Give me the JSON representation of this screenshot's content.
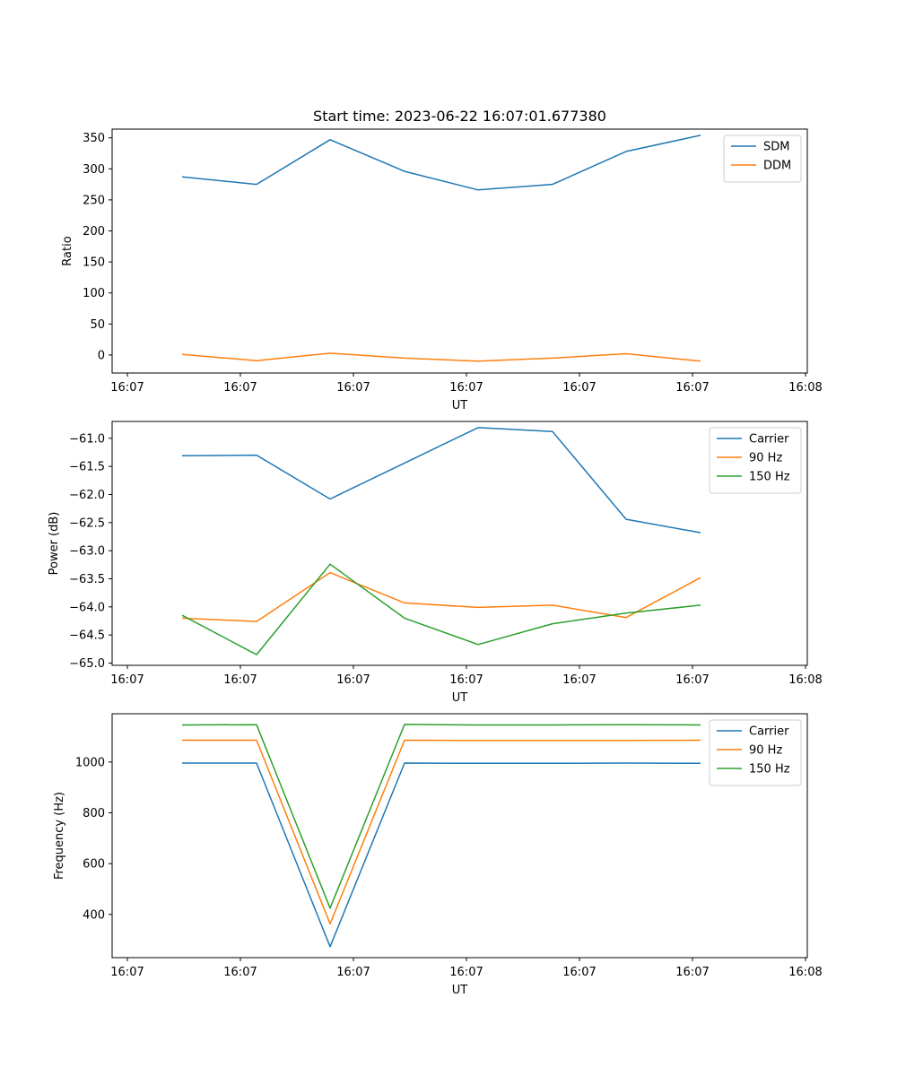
{
  "chart_data": [
    {
      "type": "line",
      "title": "Start time: 2023-06-22 16:07:01.677380",
      "xlabel": "UT",
      "ylabel": "Ratio",
      "xtick_labels": [
        "16:07",
        "16:07",
        "16:07",
        "16:07",
        "16:07",
        "16:07",
        "16:07"
      ],
      "xtick_last": "16:08",
      "ylim": [
        -29,
        364
      ],
      "yticks": [
        0,
        50,
        100,
        150,
        200,
        250,
        300,
        350
      ],
      "grid": false,
      "legend_position": "upper right",
      "series": [
        {
          "name": "SDM",
          "color": "#1f77b4",
          "values": [
            287,
            275,
            347,
            296,
            266,
            275,
            328,
            354
          ]
        },
        {
          "name": "DDM",
          "color": "#ff7f0e",
          "values": [
            1,
            -9,
            3,
            -5,
            -10,
            -5,
            2,
            -10
          ]
        }
      ]
    },
    {
      "type": "line",
      "title": "",
      "xlabel": "UT",
      "ylabel": "Power (dB)",
      "xtick_labels": [
        "16:07",
        "16:07",
        "16:07",
        "16:07",
        "16:07",
        "16:07",
        "16:07"
      ],
      "xtick_last": "16:08",
      "ylim": [
        -65.04,
        -60.7
      ],
      "yticks": [
        -61.0,
        -61.5,
        -62.0,
        -62.5,
        -63.0,
        -63.5,
        -64.0,
        -64.5,
        -65.0
      ],
      "ytick_labels": [
        "−61.0",
        "−61.5",
        "−62.0",
        "−62.5",
        "−63.0",
        "−63.5",
        "−64.0",
        "−64.5",
        "−65.0"
      ],
      "grid": false,
      "legend_position": "upper right",
      "series": [
        {
          "name": "Carrier",
          "color": "#1f77b4",
          "values": [
            -61.31,
            -61.3,
            -62.08,
            -61.44,
            -60.81,
            -60.88,
            -62.44,
            -62.68
          ]
        },
        {
          "name": "90 Hz",
          "color": "#ff7f0e",
          "values": [
            -64.2,
            -64.26,
            -63.39,
            -63.93,
            -64.01,
            -63.97,
            -64.19,
            -63.48
          ]
        },
        {
          "name": "150 Hz",
          "color": "#2ca02c",
          "values": [
            -64.15,
            -64.85,
            -63.24,
            -64.2,
            -64.67,
            -64.3,
            -64.11,
            -63.97
          ]
        }
      ]
    },
    {
      "type": "line",
      "title": "",
      "xlabel": "UT",
      "ylabel": "Frequency (Hz)",
      "xtick_labels": [
        "16:07",
        "16:07",
        "16:07",
        "16:07",
        "16:07",
        "16:07",
        "16:07"
      ],
      "xtick_last": "16:08",
      "ylim": [
        230,
        1190
      ],
      "yticks": [
        400,
        600,
        800,
        1000
      ],
      "grid": false,
      "legend_position": "upper right",
      "series": [
        {
          "name": "Carrier",
          "color": "#1f77b4",
          "values": [
            996,
            996,
            273,
            996,
            995,
            995,
            996,
            995
          ]
        },
        {
          "name": "90 Hz",
          "color": "#ff7f0e",
          "values": [
            1086,
            1086,
            363,
            1086,
            1085,
            1085,
            1085,
            1086
          ]
        },
        {
          "name": "150 Hz",
          "color": "#2ca02c",
          "values": [
            1146,
            1147,
            425,
            1148,
            1146,
            1146,
            1147,
            1146
          ]
        }
      ]
    }
  ]
}
